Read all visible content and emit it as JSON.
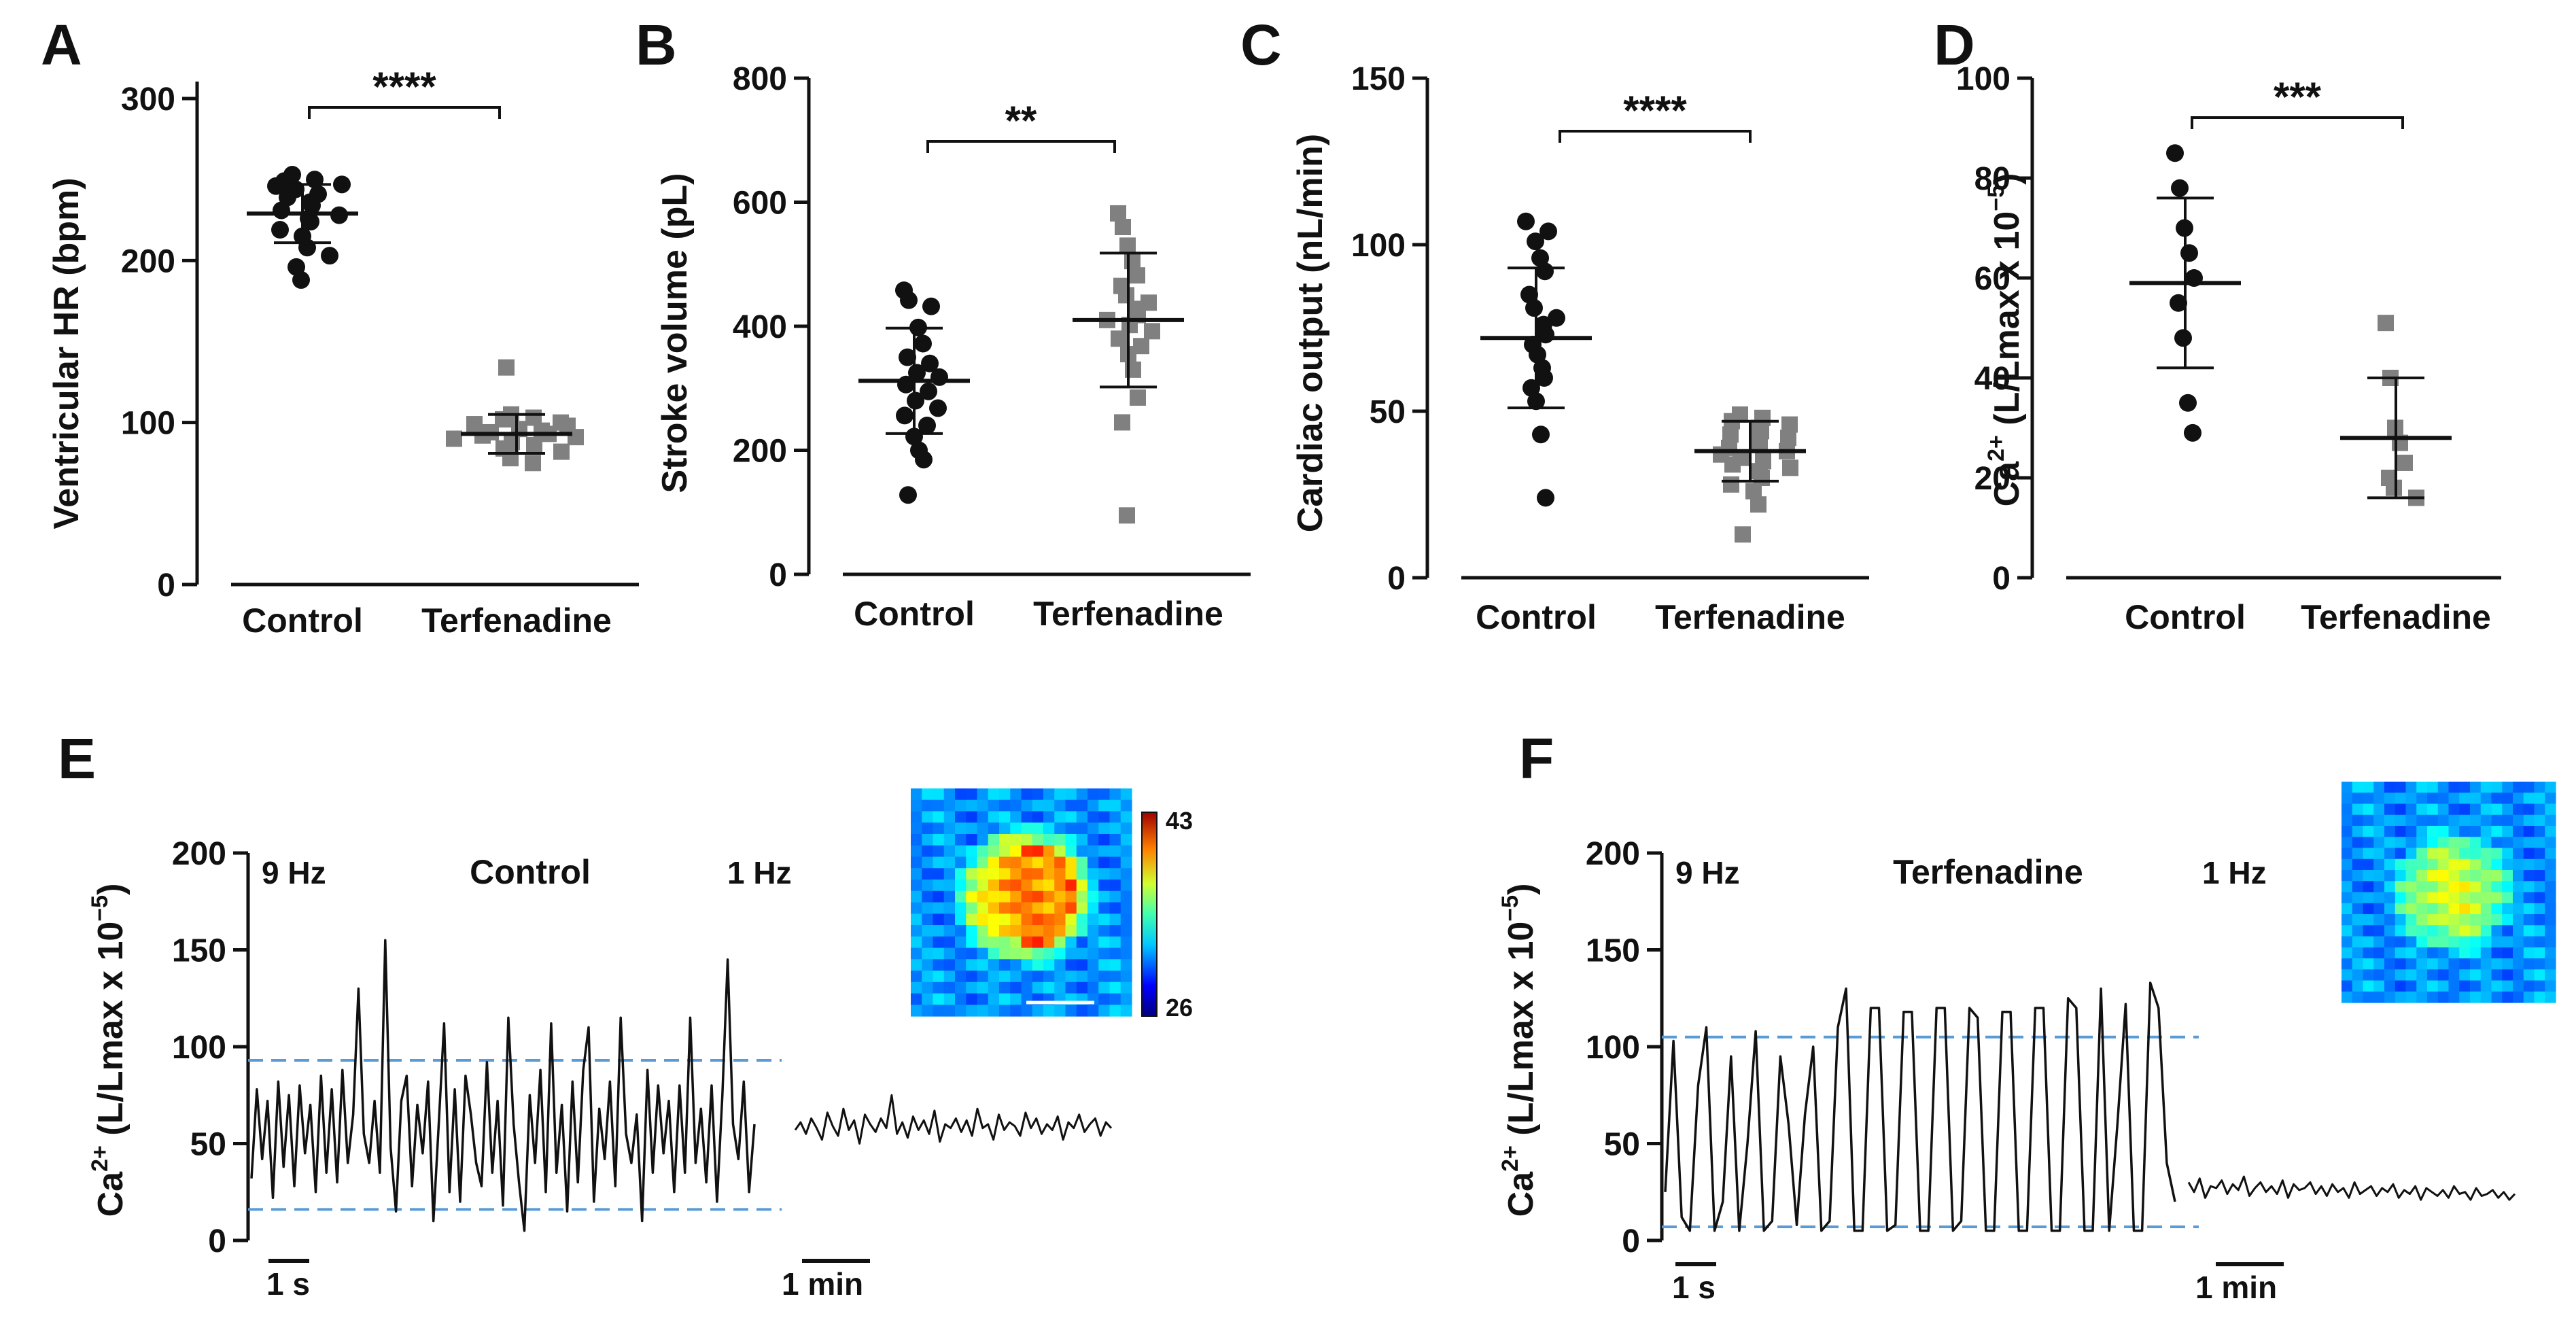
{
  "chart_data": [
    {
      "panel": "A",
      "type": "scatter",
      "ylabel": "Ventricular HR (bpm)",
      "ylim": [
        0,
        300
      ],
      "yticks": [
        "0",
        "100",
        "200",
        "300"
      ],
      "categories": [
        "Control",
        "Terfenadine"
      ],
      "series": [
        {
          "name": "Control",
          "color": "#111111",
          "marker": "circle",
          "values": [
            253,
            250,
            249,
            247,
            246,
            244,
            241,
            239,
            236,
            234,
            231,
            228,
            226,
            224,
            219,
            215,
            208,
            203,
            196,
            188
          ],
          "mean": 229,
          "sd": 18
        },
        {
          "name": "Terfenadine",
          "color": "#808080",
          "marker": "square",
          "values": [
            134,
            105,
            103,
            102,
            100,
            99,
            98,
            96,
            95,
            94,
            93,
            92,
            91,
            90,
            88,
            86,
            84,
            82,
            78,
            75
          ],
          "mean": 93,
          "sd": 12
        }
      ],
      "significance": "****"
    },
    {
      "panel": "B",
      "type": "scatter",
      "ylabel": "Stroke volume (pL)",
      "ylim": [
        0,
        800
      ],
      "yticks": [
        "0",
        "200",
        "400",
        "600",
        "800"
      ],
      "categories": [
        "Control",
        "Terfenadine"
      ],
      "series": [
        {
          "name": "Control",
          "color": "#111111",
          "marker": "circle",
          "values": [
            458,
            442,
            432,
            398,
            372,
            350,
            340,
            325,
            318,
            306,
            295,
            280,
            268,
            256,
            240,
            222,
            200,
            185,
            128
          ],
          "mean": 312,
          "sd": 85
        },
        {
          "name": "Terfenadine",
          "color": "#808080",
          "marker": "square",
          "values": [
            582,
            560,
            530,
            505,
            482,
            465,
            450,
            438,
            428,
            418,
            410,
            402,
            392,
            380,
            368,
            355,
            330,
            285,
            245,
            95
          ],
          "mean": 410,
          "sd": 108
        }
      ],
      "significance": "**"
    },
    {
      "panel": "C",
      "type": "scatter",
      "ylabel": "Cardiac output (nL/min)",
      "ylim": [
        0,
        150
      ],
      "yticks": [
        "0",
        "50",
        "100",
        "150"
      ],
      "categories": [
        "Control",
        "Terfenadine"
      ],
      "series": [
        {
          "name": "Control",
          "color": "#111111",
          "marker": "circle",
          "values": [
            107,
            104,
            101,
            96,
            92,
            85,
            81,
            78,
            76,
            73,
            70,
            67,
            63,
            60,
            57,
            53,
            43,
            24
          ],
          "mean": 72,
          "sd": 21
        },
        {
          "name": "Terfenadine",
          "color": "#808080",
          "marker": "square",
          "values": [
            49,
            48,
            47,
            46,
            45,
            44,
            43,
            42,
            41,
            40,
            39,
            38,
            37,
            36,
            35,
            34,
            33,
            32,
            30,
            28,
            26,
            22,
            13
          ],
          "mean": 38,
          "sd": 9
        }
      ],
      "significance": "****"
    },
    {
      "panel": "D",
      "type": "scatter",
      "ylabel": "Ca2+ (L/Lmax x 10-5)",
      "ylim": [
        0,
        100
      ],
      "yticks": [
        "0",
        "20",
        "40",
        "60",
        "80",
        "100"
      ],
      "categories": [
        "Control",
        "Terfenadine"
      ],
      "series": [
        {
          "name": "Control",
          "color": "#111111",
          "marker": "circle",
          "values": [
            85,
            78,
            70,
            65,
            60,
            55,
            48,
            35,
            29
          ],
          "mean": 59,
          "sd": 17
        },
        {
          "name": "Terfenadine",
          "color": "#808080",
          "marker": "square",
          "values": [
            51,
            40,
            30,
            27,
            23,
            20,
            18,
            16
          ],
          "mean": 28,
          "sd": 12
        }
      ],
      "significance": "***"
    },
    {
      "panel": "E",
      "type": "line",
      "ylabel": "Ca2+ (L/Lmax x 10-5)",
      "ylim": [
        0,
        200
      ],
      "yticks": [
        "0",
        "50",
        "100",
        "150",
        "200"
      ],
      "condition": "Control",
      "left_freq": "9 Hz",
      "right_freq": "1 Hz",
      "scale_left": "1 s",
      "scale_right": "1 min",
      "dashed_levels": [
        93,
        16
      ],
      "series": [
        {
          "name": "9 Hz",
          "values": [
            32,
            78,
            42,
            72,
            22,
            82,
            38,
            75,
            28,
            80,
            45,
            70,
            25,
            85,
            35,
            78,
            30,
            88,
            40,
            65,
            130,
            55,
            40,
            72,
            35,
            155,
            48,
            15,
            72,
            85,
            28,
            70,
            45,
            82,
            10,
            60,
            112,
            25,
            78,
            20,
            85,
            65,
            40,
            28,
            92,
            35,
            72,
            18,
            115,
            60,
            30,
            5,
            75,
            40,
            88,
            25,
            112,
            35,
            70,
            15,
            82,
            30,
            88,
            110,
            20,
            68,
            42,
            82,
            28,
            115,
            55,
            40,
            65,
            10,
            88,
            35,
            80,
            45,
            72,
            25,
            80,
            35,
            115,
            40,
            68,
            30,
            80,
            20,
            75,
            145,
            60,
            42,
            82,
            25,
            60
          ]
        },
        {
          "name": "1 Hz",
          "values": [
            57,
            61,
            55,
            63,
            58,
            52,
            66,
            59,
            54,
            68,
            57,
            62,
            50,
            65,
            60,
            56,
            63,
            58,
            75,
            55,
            61,
            53,
            64,
            57,
            62,
            55,
            67,
            51,
            60,
            58,
            63,
            56,
            62,
            54,
            68,
            58,
            60,
            52,
            65,
            57,
            61,
            59,
            54,
            66,
            58,
            63,
            55,
            60,
            57,
            64,
            52,
            61,
            58,
            65,
            56,
            60,
            63,
            54,
            61,
            58
          ]
        }
      ],
      "colorbar": {
        "max": "43",
        "min": "26"
      }
    },
    {
      "panel": "F",
      "type": "line",
      "ylabel": "Ca2+ (L/Lmax x 10-5)",
      "ylim": [
        0,
        200
      ],
      "yticks": [
        "0",
        "50",
        "100",
        "150",
        "200"
      ],
      "condition": "Terfenadine",
      "left_freq": "9 Hz",
      "right_freq": "1 Hz",
      "scale_left": "1 s",
      "scale_right": "1 min",
      "dashed_levels": [
        105,
        7
      ],
      "series": [
        {
          "name": "9 Hz",
          "values": [
            25,
            103,
            12,
            5,
            80,
            110,
            5,
            20,
            95,
            5,
            50,
            108,
            5,
            10,
            95,
            60,
            8,
            65,
            100,
            5,
            10,
            110,
            130,
            5,
            5,
            120,
            120,
            5,
            8,
            118,
            118,
            5,
            5,
            120,
            120,
            5,
            10,
            120,
            115,
            5,
            5,
            118,
            118,
            5,
            5,
            120,
            120,
            5,
            5,
            125,
            120,
            5,
            5,
            130,
            5,
            60,
            122,
            5,
            5,
            133,
            120,
            40,
            20
          ]
        },
        {
          "name": "1 Hz",
          "values": [
            30,
            25,
            32,
            22,
            28,
            27,
            31,
            24,
            29,
            26,
            33,
            23,
            27,
            30,
            25,
            28,
            24,
            31,
            22,
            29,
            26,
            27,
            30,
            24,
            28,
            23,
            29,
            25,
            27,
            22,
            30,
            24,
            26,
            28,
            23,
            27,
            25,
            29,
            22,
            26,
            24,
            28,
            21,
            27,
            25,
            23,
            26,
            22,
            28,
            24,
            25,
            21,
            27,
            23,
            24,
            26,
            22,
            25,
            21,
            24
          ]
        }
      ]
    }
  ]
}
